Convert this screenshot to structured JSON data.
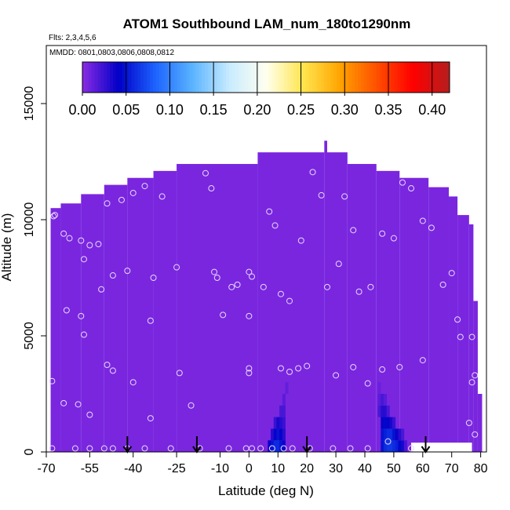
{
  "chart_data": {
    "type": "heatmap",
    "title": "ATOM1 Southbound LAM_num_180to1290nm",
    "flights_note": "Flts: 2,3,4,5,6",
    "dates_note": "MMDD: 0801,0803,0806,0808,0812",
    "xlabel": "Latitude (deg N)",
    "ylabel": "Altitude (m)",
    "xlim": [
      -70,
      82
    ],
    "ylim": [
      0,
      17500
    ],
    "x_ticks": [
      -70,
      -55,
      -40,
      -25,
      -10,
      0,
      10,
      20,
      30,
      40,
      50,
      60,
      70,
      80
    ],
    "x_tick_labels": [
      "-70",
      "-55",
      "-40",
      "-25",
      "-10",
      "0",
      "10",
      "20",
      "30",
      "40",
      "50",
      "60",
      "70",
      "80"
    ],
    "y_ticks": [
      0,
      5000,
      10000,
      15000
    ],
    "y_tick_labels": [
      "0",
      "5000",
      "10000",
      "15000"
    ],
    "colorbar": {
      "min": 0.0,
      "max": 0.42,
      "ticks": [
        0.0,
        0.05,
        0.1,
        0.15,
        0.2,
        0.25,
        0.3,
        0.35,
        0.4
      ],
      "tick_labels": [
        "0.00",
        "0.05",
        "0.10",
        "0.15",
        "0.20",
        "0.25",
        "0.30",
        "0.35",
        "0.40"
      ],
      "colors": [
        "#8a2be2",
        "#0000c8",
        "#1e64ff",
        "#5ab4ff",
        "#c8ebff",
        "#fffff0",
        "#ffe650",
        "#ffa500",
        "#ff5000",
        "#ff0000",
        "#b41e1e"
      ]
    },
    "background_value": 0.005,
    "coverage_profile": [
      {
        "lat_from": -68.5,
        "lat_to": -65,
        "max_alt": 10500
      },
      {
        "lat_from": -65,
        "lat_to": -58,
        "max_alt": 10700
      },
      {
        "lat_from": -58,
        "lat_to": -50,
        "max_alt": 11100
      },
      {
        "lat_from": -50,
        "lat_to": -42,
        "max_alt": 11500
      },
      {
        "lat_from": -42,
        "lat_to": -33,
        "max_alt": 11800
      },
      {
        "lat_from": -33,
        "lat_to": -25,
        "max_alt": 12100
      },
      {
        "lat_from": -25,
        "lat_to": 3,
        "max_alt": 12400
      },
      {
        "lat_from": 3,
        "lat_to": 26,
        "max_alt": 12900
      },
      {
        "lat_from": 26,
        "lat_to": 27,
        "max_alt": 13400
      },
      {
        "lat_from": 27,
        "lat_to": 34,
        "max_alt": 12900
      },
      {
        "lat_from": 34,
        "lat_to": 44,
        "max_alt": 12400
      },
      {
        "lat_from": 44,
        "lat_to": 52,
        "max_alt": 12100
      },
      {
        "lat_from": 52,
        "lat_to": 62,
        "max_alt": 11800
      },
      {
        "lat_from": 62,
        "lat_to": 69,
        "max_alt": 11400
      },
      {
        "lat_from": 69,
        "lat_to": 72,
        "max_alt": 11000
      },
      {
        "lat_from": 72,
        "lat_to": 76,
        "max_alt": 10200
      },
      {
        "lat_from": 76,
        "lat_to": 77.5,
        "max_alt": 9800
      },
      {
        "lat_from": 77.5,
        "lat_to": 79,
        "max_alt": 6500
      },
      {
        "lat_from": 79,
        "lat_to": 80.5,
        "max_alt": 2500
      }
    ],
    "gap_regions": [
      {
        "lat_from": 56,
        "lat_to": 77,
        "alt_from": 0,
        "alt_to": 400
      }
    ],
    "enhanced_cells": [
      {
        "lat": 7,
        "alt": 250,
        "value": 0.04
      },
      {
        "lat": 8,
        "alt": 250,
        "value": 0.05
      },
      {
        "lat": 9,
        "alt": 250,
        "value": 0.06
      },
      {
        "lat": 10,
        "alt": 250,
        "value": 0.06
      },
      {
        "lat": 11,
        "alt": 250,
        "value": 0.05
      },
      {
        "lat": 12,
        "alt": 250,
        "value": 0.04
      },
      {
        "lat": 8,
        "alt": 750,
        "value": 0.03
      },
      {
        "lat": 9,
        "alt": 750,
        "value": 0.04
      },
      {
        "lat": 10,
        "alt": 750,
        "value": 0.05
      },
      {
        "lat": 11,
        "alt": 750,
        "value": 0.04
      },
      {
        "lat": 12,
        "alt": 750,
        "value": 0.03
      },
      {
        "lat": 9,
        "alt": 1250,
        "value": 0.025
      },
      {
        "lat": 10,
        "alt": 1250,
        "value": 0.035
      },
      {
        "lat": 11,
        "alt": 1250,
        "value": 0.03
      },
      {
        "lat": 12,
        "alt": 1250,
        "value": 0.025
      },
      {
        "lat": 11,
        "alt": 1750,
        "value": 0.02
      },
      {
        "lat": 12,
        "alt": 1750,
        "value": 0.02
      },
      {
        "lat": 12,
        "alt": 2250,
        "value": 0.015
      },
      {
        "lat": 13,
        "alt": 2750,
        "value": 0.012
      },
      {
        "lat": 46,
        "alt": 250,
        "value": 0.05
      },
      {
        "lat": 47,
        "alt": 250,
        "value": 0.06
      },
      {
        "lat": 48,
        "alt": 250,
        "value": 0.065
      },
      {
        "lat": 49,
        "alt": 250,
        "value": 0.065
      },
      {
        "lat": 50,
        "alt": 250,
        "value": 0.06
      },
      {
        "lat": 51,
        "alt": 250,
        "value": 0.055
      },
      {
        "lat": 52,
        "alt": 250,
        "value": 0.045
      },
      {
        "lat": 53,
        "alt": 250,
        "value": 0.035
      },
      {
        "lat": 54,
        "alt": 250,
        "value": 0.02
      },
      {
        "lat": 46,
        "alt": 750,
        "value": 0.05
      },
      {
        "lat": 47,
        "alt": 750,
        "value": 0.055
      },
      {
        "lat": 48,
        "alt": 750,
        "value": 0.06
      },
      {
        "lat": 49,
        "alt": 750,
        "value": 0.06
      },
      {
        "lat": 50,
        "alt": 750,
        "value": 0.05
      },
      {
        "lat": 51,
        "alt": 750,
        "value": 0.04
      },
      {
        "lat": 52,
        "alt": 750,
        "value": 0.03
      },
      {
        "lat": 53,
        "alt": 750,
        "value": 0.02
      },
      {
        "lat": 46,
        "alt": 1250,
        "value": 0.04
      },
      {
        "lat": 47,
        "alt": 1250,
        "value": 0.045
      },
      {
        "lat": 48,
        "alt": 1250,
        "value": 0.04
      },
      {
        "lat": 49,
        "alt": 1250,
        "value": 0.035
      },
      {
        "lat": 50,
        "alt": 1250,
        "value": 0.025
      },
      {
        "lat": 45,
        "alt": 1750,
        "value": 0.02
      },
      {
        "lat": 46,
        "alt": 1750,
        "value": 0.03
      },
      {
        "lat": 47,
        "alt": 1750,
        "value": 0.03
      },
      {
        "lat": 48,
        "alt": 1750,
        "value": 0.02
      },
      {
        "lat": 45,
        "alt": 2250,
        "value": 0.015
      },
      {
        "lat": 46,
        "alt": 2250,
        "value": 0.02
      },
      {
        "lat": 47,
        "alt": 2250,
        "value": 0.015
      },
      {
        "lat": 45,
        "alt": 2750,
        "value": 0.01
      }
    ],
    "sample_points": [
      {
        "lat": -67,
        "alt": 10200
      },
      {
        "lat": -67.5,
        "alt": 10150
      },
      {
        "lat": -64,
        "alt": 9400
      },
      {
        "lat": -62,
        "alt": 9200
      },
      {
        "lat": -58,
        "alt": 9100
      },
      {
        "lat": -57,
        "alt": 8300
      },
      {
        "lat": -55,
        "alt": 8900
      },
      {
        "lat": -52,
        "alt": 8950
      },
      {
        "lat": -51,
        "alt": 7000
      },
      {
        "lat": -49,
        "alt": 10700
      },
      {
        "lat": -47,
        "alt": 7600
      },
      {
        "lat": -44,
        "alt": 10850
      },
      {
        "lat": -42,
        "alt": 7800
      },
      {
        "lat": -40,
        "alt": 11150
      },
      {
        "lat": -36,
        "alt": 11450
      },
      {
        "lat": -33,
        "alt": 7500
      },
      {
        "lat": -30,
        "alt": 11000
      },
      {
        "lat": -25,
        "alt": 7950
      },
      {
        "lat": -15,
        "alt": 12000
      },
      {
        "lat": -13,
        "alt": 11350
      },
      {
        "lat": -12,
        "alt": 7750
      },
      {
        "lat": -11,
        "alt": 7500
      },
      {
        "lat": -6,
        "alt": 7100
      },
      {
        "lat": -4,
        "alt": 7200
      },
      {
        "lat": 0,
        "alt": 7750
      },
      {
        "lat": 1,
        "alt": 7550
      },
      {
        "lat": 5,
        "alt": 7100
      },
      {
        "lat": 7,
        "alt": 10350
      },
      {
        "lat": 9,
        "alt": 9750
      },
      {
        "lat": 11,
        "alt": 6800
      },
      {
        "lat": 14,
        "alt": 6500
      },
      {
        "lat": 18,
        "alt": 9100
      },
      {
        "lat": 22,
        "alt": 12050
      },
      {
        "lat": 25,
        "alt": 11050
      },
      {
        "lat": 27,
        "alt": 7100
      },
      {
        "lat": 31,
        "alt": 8100
      },
      {
        "lat": 33,
        "alt": 11000
      },
      {
        "lat": 36,
        "alt": 9550
      },
      {
        "lat": 38,
        "alt": 6900
      },
      {
        "lat": 42,
        "alt": 7100
      },
      {
        "lat": 46,
        "alt": 9400
      },
      {
        "lat": 50,
        "alt": 9200
      },
      {
        "lat": 53,
        "alt": 11600
      },
      {
        "lat": 56,
        "alt": 11350
      },
      {
        "lat": 60,
        "alt": 9950
      },
      {
        "lat": 63,
        "alt": 9650
      },
      {
        "lat": 67,
        "alt": 7200
      },
      {
        "lat": 70,
        "alt": 7700
      },
      {
        "lat": 72,
        "alt": 5700
      },
      {
        "lat": 73,
        "alt": 4950
      },
      {
        "lat": 76,
        "alt": 1250
      },
      {
        "lat": -63,
        "alt": 6100
      },
      {
        "lat": -58,
        "alt": 5850
      },
      {
        "lat": -57,
        "alt": 5050
      },
      {
        "lat": -49,
        "alt": 3750
      },
      {
        "lat": -47,
        "alt": 3500
      },
      {
        "lat": -40,
        "alt": 3000
      },
      {
        "lat": -34,
        "alt": 5650
      },
      {
        "lat": -24,
        "alt": 3400
      },
      {
        "lat": -20,
        "alt": 2000
      },
      {
        "lat": -9,
        "alt": 5900
      },
      {
        "lat": 0,
        "alt": 5850
      },
      {
        "lat": 0,
        "alt": 3600
      },
      {
        "lat": 0,
        "alt": 3400
      },
      {
        "lat": 11,
        "alt": 3600
      },
      {
        "lat": 14,
        "alt": 3450
      },
      {
        "lat": 17,
        "alt": 3600
      },
      {
        "lat": 20,
        "alt": 3700
      },
      {
        "lat": 30,
        "alt": 3300
      },
      {
        "lat": 36,
        "alt": 3650
      },
      {
        "lat": 41,
        "alt": 2950
      },
      {
        "lat": 46,
        "alt": 3550
      },
      {
        "lat": 52,
        "alt": 3650
      },
      {
        "lat": 60,
        "alt": 3950
      },
      {
        "lat": 77,
        "alt": 4950
      },
      {
        "lat": 78,
        "alt": 3300
      },
      {
        "lat": 77,
        "alt": 3000
      },
      {
        "lat": -68,
        "alt": 3050
      },
      {
        "lat": -64,
        "alt": 2100
      },
      {
        "lat": -59,
        "alt": 2050
      },
      {
        "lat": -55,
        "alt": 1600
      },
      {
        "lat": -34,
        "alt": 1450
      },
      {
        "lat": -68,
        "alt": 150
      },
      {
        "lat": -60,
        "alt": 150
      },
      {
        "lat": -55,
        "alt": 150
      },
      {
        "lat": -50,
        "alt": 150
      },
      {
        "lat": -47,
        "alt": 150
      },
      {
        "lat": -42,
        "alt": 150
      },
      {
        "lat": -36,
        "alt": 150
      },
      {
        "lat": -27,
        "alt": 150
      },
      {
        "lat": -17,
        "alt": 150
      },
      {
        "lat": -7,
        "alt": 150
      },
      {
        "lat": -1,
        "alt": 150
      },
      {
        "lat": 1,
        "alt": 150
      },
      {
        "lat": 4,
        "alt": 150
      },
      {
        "lat": 8,
        "alt": 150
      },
      {
        "lat": 12,
        "alt": 150
      },
      {
        "lat": 15,
        "alt": 150
      },
      {
        "lat": 21,
        "alt": 150
      },
      {
        "lat": 29,
        "alt": 150
      },
      {
        "lat": 35,
        "alt": 150
      },
      {
        "lat": 41,
        "alt": 150
      },
      {
        "lat": 48,
        "alt": 450
      },
      {
        "lat": 56,
        "alt": 150
      },
      {
        "lat": 78,
        "alt": 750
      }
    ],
    "arrows_at_lat": [
      -42,
      -18,
      20,
      61
    ]
  }
}
